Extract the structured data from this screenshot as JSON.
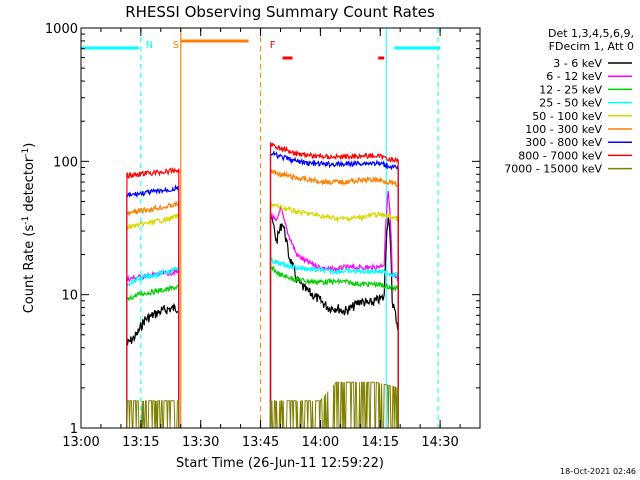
{
  "chart_data": {
    "type": "line",
    "title": "RHESSI Observing Summary Count Rates",
    "xlabel": "Start Time (26-Jun-11 12:59:22)",
    "ylabel_main": "Count Rate (s",
    "ylabel_sup1": "-1",
    "ylabel_mid": " detector",
    "ylabel_sup2": "-1",
    "ylabel_end": ")",
    "x_ticks": [
      "13:00",
      "13:15",
      "13:30",
      "13:45",
      "14:00",
      "14:15",
      "14:30"
    ],
    "x_tick_minutes": [
      0,
      15,
      30,
      45,
      60,
      75,
      90
    ],
    "xlim_minutes": [
      0,
      100
    ],
    "y_scale": "log",
    "y_ticks": [
      "1",
      "10",
      "100",
      "1000"
    ],
    "y_tick_values": [
      1,
      10,
      100,
      1000
    ],
    "ylim": [
      1,
      1000
    ],
    "legend_header": [
      "Det 1,3,4,5,6,9,",
      "FDecim 1, Att 0"
    ],
    "legend_placement": "right",
    "timestamp": "18-Oct-2021 02:46",
    "segments": [
      [
        11.5,
        24.5
      ],
      [
        47.5,
        79.5
      ]
    ],
    "series": [
      {
        "name": "3 - 6 keV",
        "color": "#000000",
        "values": [
          [
            11.5,
            4.2
          ],
          [
            14,
            5.0
          ],
          [
            16,
            6.5
          ],
          [
            18,
            7.0
          ],
          [
            20,
            7.5
          ],
          [
            22,
            7.8
          ],
          [
            24.5,
            8.0
          ],
          [
            47.5,
            40
          ],
          [
            49,
            25
          ],
          [
            50.5,
            35
          ],
          [
            52,
            20
          ],
          [
            54,
            13
          ],
          [
            56,
            11
          ],
          [
            58,
            10
          ],
          [
            60,
            9
          ],
          [
            62,
            8
          ],
          [
            64,
            8
          ],
          [
            66,
            7.5
          ],
          [
            68,
            8
          ],
          [
            70,
            9
          ],
          [
            72,
            8.5
          ],
          [
            74,
            9
          ],
          [
            76,
            9.5
          ],
          [
            77,
            40
          ],
          [
            78,
            9
          ],
          [
            79.5,
            5.5
          ]
        ]
      },
      {
        "name": "6 - 12 keV",
        "color": "#ff00ff",
        "values": [
          [
            11.5,
            13
          ],
          [
            14,
            13.5
          ],
          [
            18,
            14
          ],
          [
            22,
            14.5
          ],
          [
            24.5,
            15
          ],
          [
            47.5,
            40
          ],
          [
            49,
            35
          ],
          [
            50,
            45
          ],
          [
            51,
            35
          ],
          [
            52,
            28
          ],
          [
            54,
            20
          ],
          [
            56,
            18
          ],
          [
            58,
            17
          ],
          [
            60,
            16
          ],
          [
            62,
            15.5
          ],
          [
            64,
            15.5
          ],
          [
            66,
            16
          ],
          [
            68,
            16
          ],
          [
            70,
            16
          ],
          [
            72,
            16
          ],
          [
            74,
            16
          ],
          [
            76,
            17
          ],
          [
            77,
            60
          ],
          [
            78,
            14
          ],
          [
            79.5,
            13
          ]
        ]
      },
      {
        "name": "12 - 25 keV",
        "color": "#00d000",
        "values": [
          [
            11.5,
            9
          ],
          [
            14,
            10
          ],
          [
            18,
            10.5
          ],
          [
            22,
            11
          ],
          [
            24.5,
            11.5
          ],
          [
            47.5,
            16
          ],
          [
            50,
            14
          ],
          [
            54,
            13
          ],
          [
            58,
            12.5
          ],
          [
            62,
            12.5
          ],
          [
            66,
            12.5
          ],
          [
            70,
            12
          ],
          [
            74,
            12
          ],
          [
            77,
            11.5
          ],
          [
            79.5,
            11
          ]
        ]
      },
      {
        "name": "25 - 50 keV",
        "color": "#00ffff",
        "values": [
          [
            11.5,
            12
          ],
          [
            14,
            13
          ],
          [
            18,
            14
          ],
          [
            22,
            15
          ],
          [
            24.5,
            16
          ],
          [
            47.5,
            18
          ],
          [
            50,
            17
          ],
          [
            54,
            16
          ],
          [
            58,
            15.5
          ],
          [
            62,
            15
          ],
          [
            66,
            15
          ],
          [
            70,
            15
          ],
          [
            74,
            15
          ],
          [
            77,
            14.5
          ],
          [
            79.5,
            14
          ]
        ]
      },
      {
        "name": "50 - 100 keV",
        "color": "#d8d800",
        "values": [
          [
            11.5,
            32
          ],
          [
            14,
            33
          ],
          [
            18,
            35
          ],
          [
            22,
            37
          ],
          [
            24.5,
            39
          ],
          [
            47.5,
            48
          ],
          [
            50,
            45
          ],
          [
            54,
            42
          ],
          [
            58,
            40
          ],
          [
            62,
            38
          ],
          [
            66,
            37
          ],
          [
            70,
            38
          ],
          [
            74,
            40
          ],
          [
            77,
            39
          ],
          [
            79.5,
            37
          ]
        ]
      },
      {
        "name": "100 - 300 keV",
        "color": "#ff8000",
        "values": [
          [
            11.5,
            40
          ],
          [
            14,
            42
          ],
          [
            18,
            44
          ],
          [
            22,
            46
          ],
          [
            24.5,
            48
          ],
          [
            47.5,
            85
          ],
          [
            50,
            80
          ],
          [
            54,
            75
          ],
          [
            58,
            72
          ],
          [
            62,
            70
          ],
          [
            66,
            70
          ],
          [
            70,
            72
          ],
          [
            74,
            73
          ],
          [
            77,
            70
          ],
          [
            79.5,
            66
          ]
        ]
      },
      {
        "name": "300 - 800 keV",
        "color": "#0000ff",
        "values": [
          [
            11.5,
            55
          ],
          [
            14,
            57
          ],
          [
            18,
            59
          ],
          [
            22,
            61
          ],
          [
            24.5,
            63
          ],
          [
            47.5,
            115
          ],
          [
            50,
            108
          ],
          [
            54,
            100
          ],
          [
            58,
            96
          ],
          [
            62,
            95
          ],
          [
            66,
            95
          ],
          [
            70,
            97
          ],
          [
            74,
            97
          ],
          [
            77,
            93
          ],
          [
            79.5,
            88
          ]
        ]
      },
      {
        "name": "800 - 7000 keV",
        "color": "#ff0000",
        "values": [
          [
            11.5,
            78
          ],
          [
            14,
            80
          ],
          [
            18,
            82
          ],
          [
            22,
            84
          ],
          [
            24.5,
            86
          ],
          [
            47.5,
            135
          ],
          [
            50,
            125
          ],
          [
            54,
            115
          ],
          [
            58,
            110
          ],
          [
            62,
            108
          ],
          [
            66,
            108
          ],
          [
            70,
            110
          ],
          [
            74,
            110
          ],
          [
            77,
            105
          ],
          [
            79.5,
            100
          ]
        ]
      },
      {
        "name": "7000 - 15000 keV",
        "color": "#808000",
        "values": [
          [
            11.5,
            1.6
          ],
          [
            24.5,
            1.6
          ],
          [
            47.5,
            1.6
          ],
          [
            60,
            1.6
          ],
          [
            64,
            2.2
          ],
          [
            70,
            2.2
          ],
          [
            74,
            2.2
          ],
          [
            79.5,
            2.0
          ]
        ]
      }
    ],
    "cyan_background": [
      0,
      15,
      76.5,
      89.5
    ],
    "night_bars": [
      [
        0,
        14.5
      ],
      [
        78.5,
        90
      ]
    ],
    "saa_bar": [
      25,
      42
    ],
    "flare_bars": [
      [
        50.5,
        53
      ],
      [
        74.5,
        76
      ]
    ],
    "markers": [
      {
        "label": "N",
        "t": 16.2,
        "color": "#00ffff"
      },
      {
        "label": "S",
        "t": 23.0,
        "color": "#ff8000"
      },
      {
        "label": "F",
        "t": 47.3,
        "color": "#ff0000"
      }
    ]
  }
}
